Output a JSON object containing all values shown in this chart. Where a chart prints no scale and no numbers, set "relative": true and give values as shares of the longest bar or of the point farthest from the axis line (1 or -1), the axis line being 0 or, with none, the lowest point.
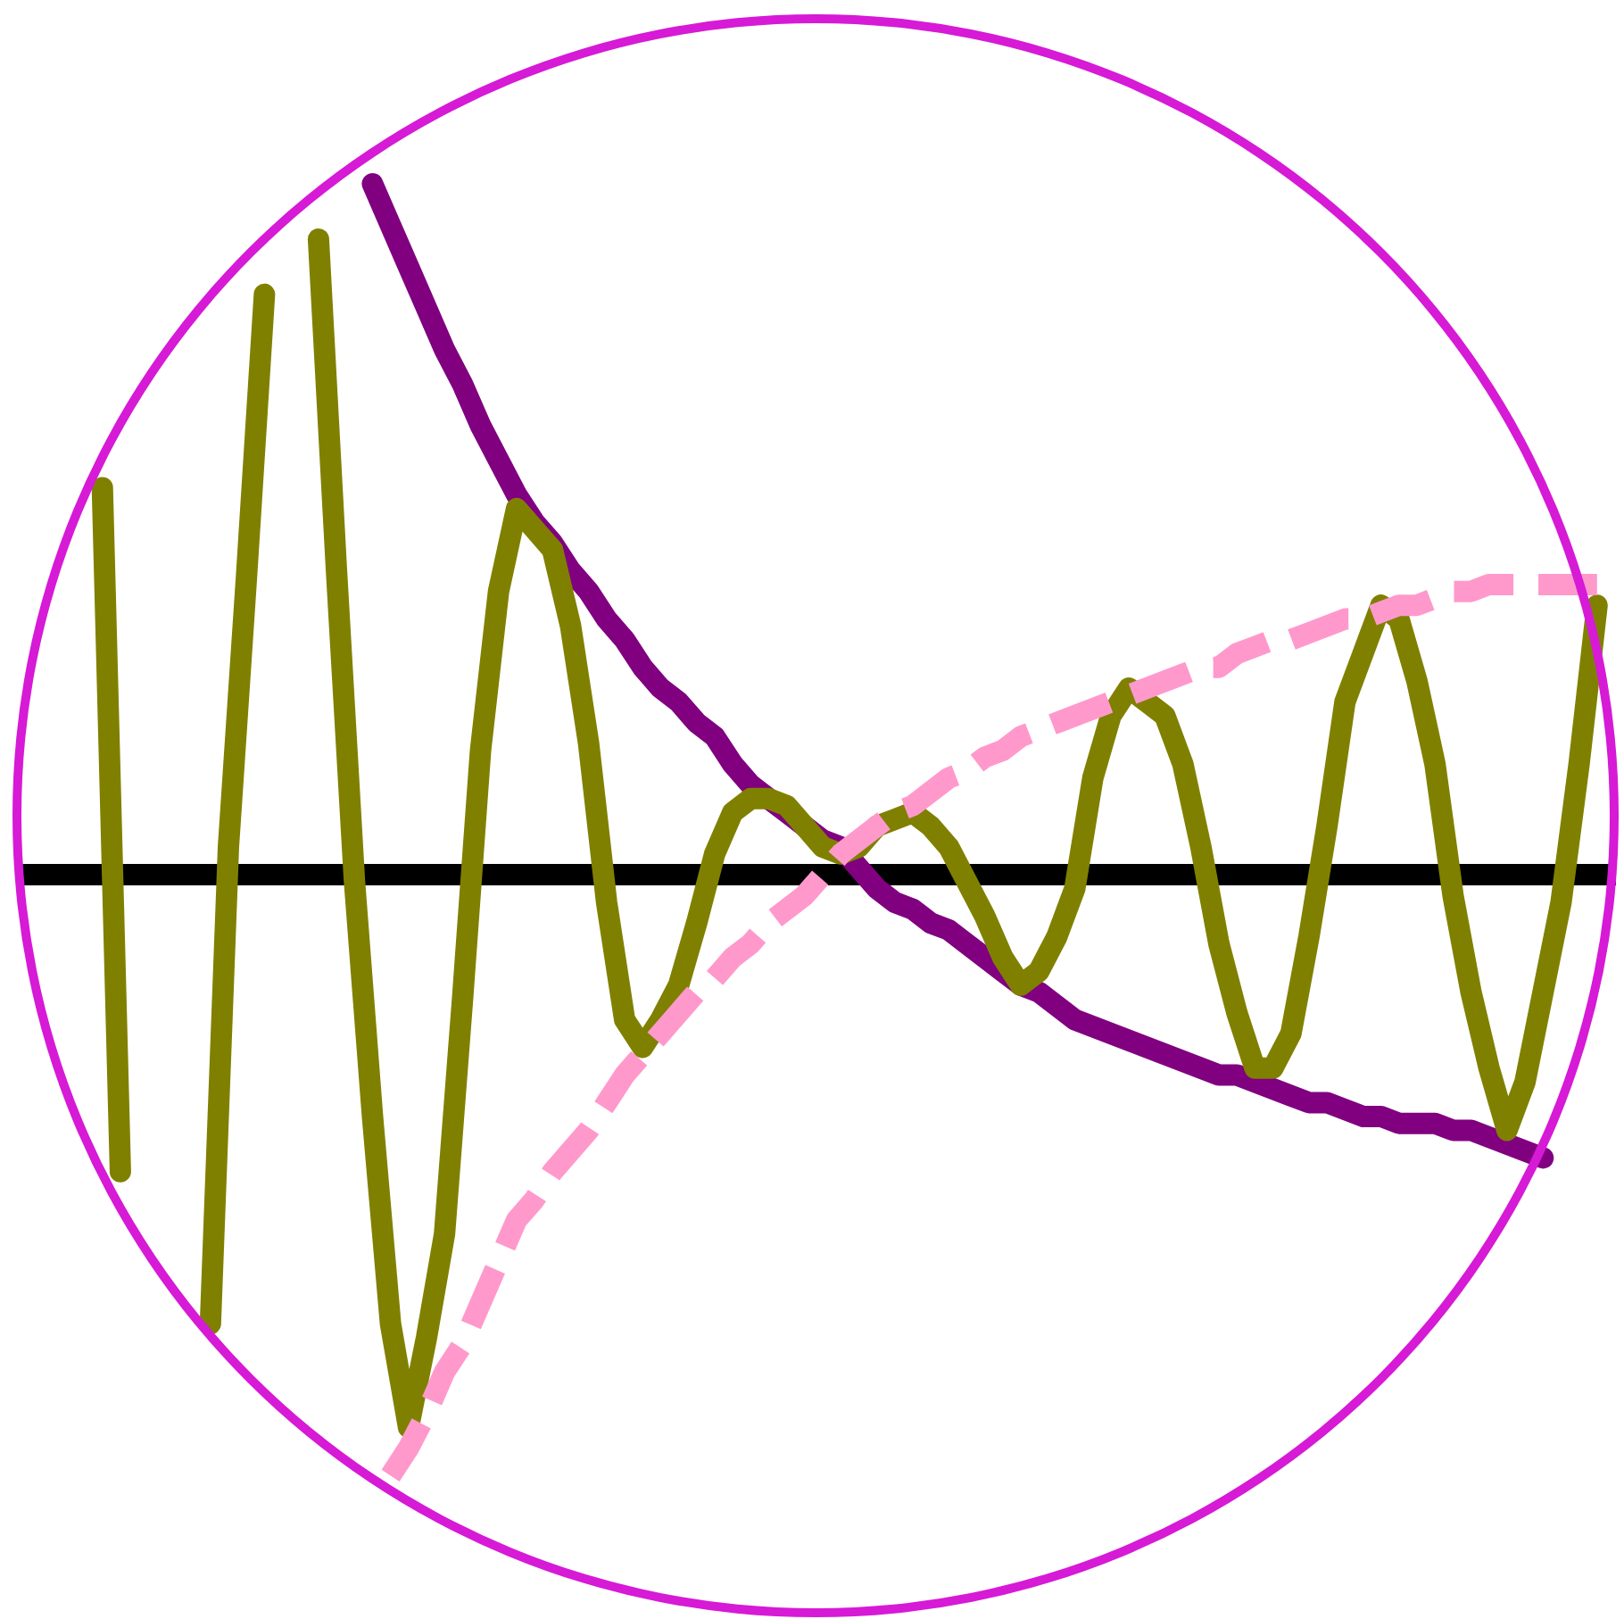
{
  "chart_data": {
    "type": "line",
    "relative": true,
    "marker": "none",
    "line_style": "solid",
    "categories": [
      null,
      null,
      null,
      null,
      null,
      null,
      null,
      null,
      null,
      null,
      null,
      null,
      null,
      null,
      null,
      null,
      null,
      null,
      null,
      null,
      null,
      null,
      null,
      null,
      null,
      null,
      null,
      null,
      null,
      null,
      null,
      null,
      null,
      null,
      null,
      null,
      null,
      null,
      null,
      null,
      null,
      null,
      null,
      null,
      null,
      null,
      null,
      null,
      null,
      null,
      null,
      null,
      null,
      null,
      null,
      null,
      null,
      null,
      null,
      null,
      null,
      null,
      null,
      null,
      null,
      null,
      null,
      null,
      null,
      null,
      null,
      null,
      null,
      null,
      null,
      null,
      null,
      null,
      null,
      null,
      null,
      null,
      null,
      null,
      null,
      null,
      null,
      null,
      null
    ],
    "series": [
      {
        "color": "#800080",
        "values": [
          null,
          null,
          null,
          null,
          null,
          null,
          null,
          null,
          null,
          null,
          null,
          null,
          null,
          null,
          null,
          null,
          null,
          null,
          null,
          1.0,
          0.94,
          0.88,
          0.82,
          0.76,
          0.71,
          0.65,
          0.6,
          0.55,
          0.51,
          0.48,
          0.44,
          0.41,
          0.37,
          0.34,
          0.3,
          0.27,
          0.25,
          0.22,
          0.2,
          0.16,
          0.13,
          0.11,
          0.09,
          0.07,
          0.05,
          0.04,
          0.01,
          -0.02,
          -0.04,
          -0.05,
          -0.07,
          -0.08,
          -0.1,
          -0.12,
          -0.14,
          -0.16,
          -0.17,
          -0.19,
          -0.21,
          -0.22,
          -0.23,
          -0.24,
          -0.25,
          -0.26,
          -0.27,
          -0.28,
          -0.29,
          -0.29,
          -0.3,
          -0.31,
          -0.32,
          -0.33,
          -0.33,
          -0.34,
          -0.35,
          -0.35,
          -0.36,
          -0.36,
          -0.36,
          -0.37,
          -0.37,
          -0.38,
          -0.39,
          -0.4,
          -0.41,
          null,
          null,
          null,
          null
        ]
      },
      {
        "color": "#808000",
        "values": [
          null,
          null,
          null,
          null,
          0.56,
          -0.43,
          null,
          null,
          null,
          null,
          -0.65,
          0.04,
          0.43,
          0.84,
          null,
          null,
          0.92,
          0.44,
          -0.01,
          -0.35,
          -0.65,
          -0.8,
          -0.67,
          -0.52,
          -0.18,
          0.18,
          0.41,
          0.53,
          0.5,
          0.47,
          0.36,
          0.19,
          -0.04,
          -0.21,
          -0.25,
          -0.21,
          -0.16,
          -0.07,
          0.03,
          0.09,
          0.11,
          0.11,
          0.1,
          0.07,
          0.04,
          0.03,
          0.04,
          0.07,
          0.08,
          0.09,
          0.07,
          0.04,
          -0.01,
          -0.06,
          -0.12,
          -0.16,
          -0.14,
          -0.09,
          -0.02,
          0.14,
          0.23,
          0.27,
          0.25,
          0.23,
          0.16,
          0.04,
          -0.1,
          -0.2,
          -0.28,
          -0.28,
          -0.23,
          -0.09,
          0.07,
          0.25,
          0.32,
          0.39,
          0.37,
          0.28,
          0.16,
          -0.03,
          -0.17,
          -0.28,
          -0.37,
          -0.3,
          -0.17,
          -0.04,
          0.16,
          0.39,
          null
        ]
      },
      {
        "color": "#ff99cc",
        "line_style": "dashed",
        "values": [
          null,
          null,
          null,
          null,
          null,
          null,
          null,
          null,
          null,
          null,
          null,
          null,
          null,
          null,
          null,
          null,
          null,
          null,
          null,
          null,
          -0.87,
          -0.83,
          -0.78,
          -0.72,
          -0.68,
          -0.62,
          -0.56,
          -0.5,
          -0.47,
          -0.43,
          -0.4,
          -0.37,
          -0.33,
          -0.29,
          -0.26,
          -0.23,
          -0.2,
          -0.17,
          -0.15,
          -0.12,
          -0.1,
          -0.07,
          -0.05,
          -0.03,
          0.0,
          0.03,
          0.05,
          0.07,
          0.09,
          0.1,
          0.12,
          0.14,
          0.15,
          0.17,
          0.18,
          0.2,
          0.21,
          0.22,
          0.23,
          0.24,
          0.25,
          0.26,
          0.27,
          0.28,
          0.29,
          0.3,
          0.3,
          0.32,
          0.33,
          0.34,
          0.34,
          0.35,
          0.36,
          0.37,
          0.37,
          0.38,
          0.39,
          0.39,
          0.4,
          0.41,
          0.41,
          0.42,
          0.42,
          0.42,
          0.42,
          0.42,
          0.42,
          0.42,
          null
        ]
      }
    ]
  }
}
